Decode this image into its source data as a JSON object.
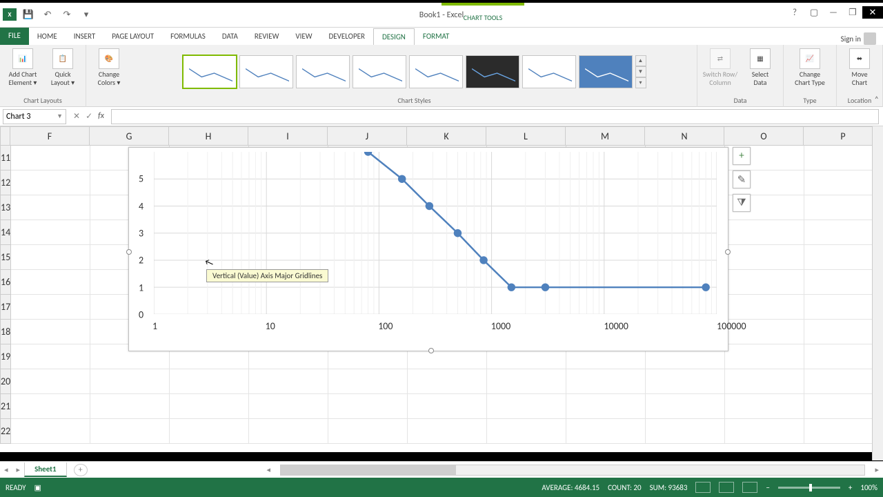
{
  "app": {
    "title": "Book1 - Excel",
    "context_tab": "CHART TOOLS"
  },
  "qat": {
    "save": "💾",
    "undo": "↶",
    "redo": "↷"
  },
  "win": {
    "help": "?",
    "ribbon_mode": "▢",
    "min": "—",
    "restore": "❐",
    "close": "✕"
  },
  "signin": "Sign in",
  "tabs": {
    "file": "FILE",
    "home": "HOME",
    "insert": "INSERT",
    "pagelayout": "PAGE LAYOUT",
    "formulas": "FORMULAS",
    "data": "DATA",
    "review": "REVIEW",
    "view": "VIEW",
    "developer": "DEVELOPER",
    "design": "DESIGN",
    "format": "FORMAT"
  },
  "ribbon": {
    "groups": {
      "chart_layouts": "Chart Layouts",
      "chart_styles": "Chart Styles",
      "data": "Data",
      "type": "Type",
      "location": "Location"
    },
    "btns": {
      "add_element": "Add Chart\nElement ▾",
      "quick_layout": "Quick\nLayout ▾",
      "change_colors": "Change\nColors ▾",
      "switch": "Switch Row/\nColumn",
      "select_data": "Select\nData",
      "change_type": "Change\nChart Type",
      "move_chart": "Move\nChart"
    }
  },
  "namebox": "Chart 3",
  "columns": [
    "F",
    "G",
    "H",
    "I",
    "J",
    "K",
    "L",
    "M",
    "N",
    "O",
    "P"
  ],
  "row_start": 11,
  "row_end": 22,
  "chart": {
    "type": "line",
    "tooltip": "Vertical (Value) Axis Major Gridlines",
    "series_color": "#4f81bd",
    "marker_color": "#4f81bd",
    "marker_fill": "#4f81bd",
    "grid_color": "#d9d9d9",
    "axis_text_color": "#595959",
    "background_color": "#ffffff",
    "x_scale": "log",
    "xlim": [
      1,
      100000
    ],
    "xticks": [
      1,
      10,
      100,
      1000,
      10000,
      100000
    ],
    "xlabels": [
      "1",
      "10",
      "100",
      "1000",
      "10000",
      "100000"
    ],
    "ylim": [
      0,
      6
    ],
    "yticks": [
      0,
      1,
      2,
      3,
      4,
      5
    ],
    "line_width": 2.5,
    "marker_radius": 5,
    "points": [
      {
        "x": 80,
        "y": 6.0
      },
      {
        "x": 160,
        "y": 5.0
      },
      {
        "x": 280,
        "y": 4.0
      },
      {
        "x": 500,
        "y": 3.0
      },
      {
        "x": 850,
        "y": 2.0
      },
      {
        "x": 1500,
        "y": 1.0
      },
      {
        "x": 3000,
        "y": 1.0
      },
      {
        "x": 80000,
        "y": 1.0
      }
    ]
  },
  "chartbtns": {
    "plus": "+",
    "brush": "✎",
    "filter": "⧩"
  },
  "sheet_tab": "Sheet1",
  "status": {
    "ready": "READY",
    "average_lbl": "AVERAGE:",
    "average_val": "4684.15",
    "count_lbl": "COUNT:",
    "count_val": "20",
    "sum_lbl": "SUM:",
    "sum_val": "93683",
    "zoom": "100%"
  }
}
